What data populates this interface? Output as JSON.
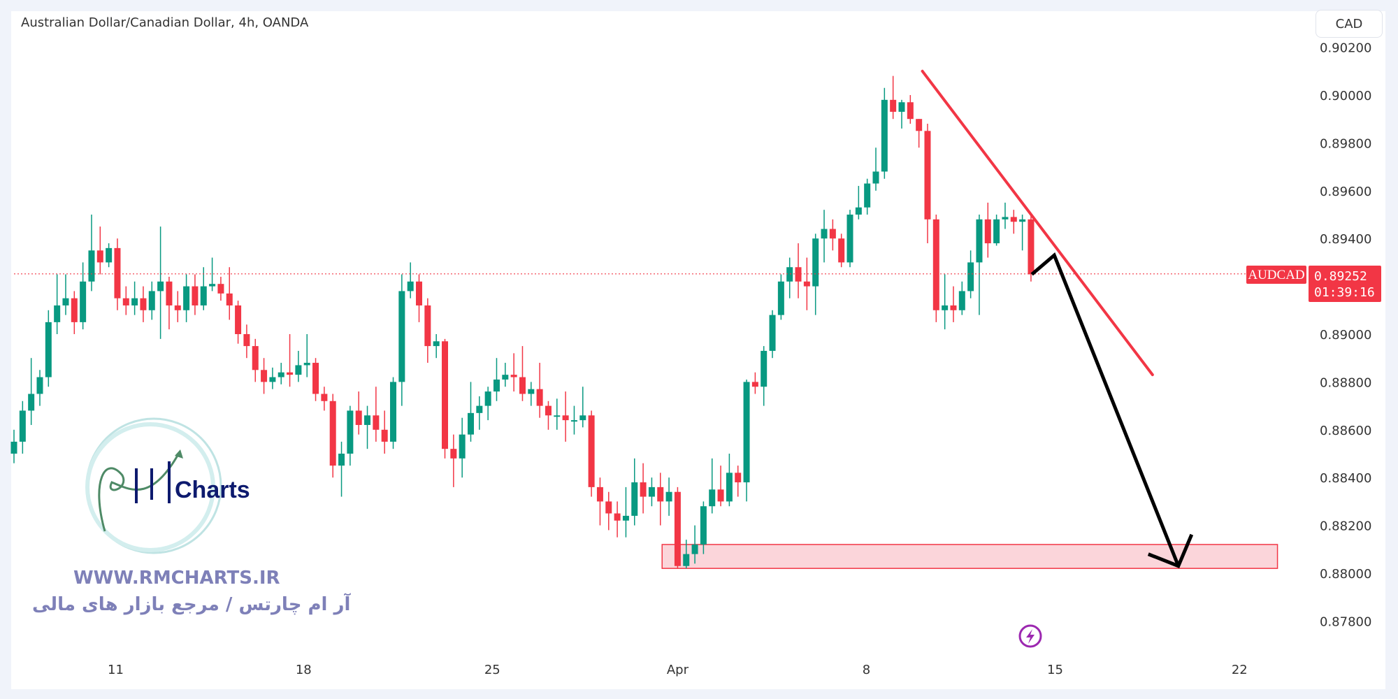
{
  "header": {
    "title": "Australian Dollar/Canadian Dollar, 4h, OANDA",
    "currency_button": "CAD"
  },
  "watermark": {
    "logo_text": "RM Charts",
    "url": "WWW.RMCHARTS.IR",
    "tagline_fa": "آر ام چارتس / مرجع بازار های مالی"
  },
  "price_label": {
    "symbol": "AUDCAD",
    "price": "0.89252",
    "countdown": "01:39:16",
    "color": "#f23645"
  },
  "colors": {
    "up": "#089981",
    "down": "#f23645",
    "zone_fill": "#fbd5da",
    "trendline": "#f23645",
    "arrow": "#000000",
    "event_icon": "#9c27b0"
  },
  "icons": {
    "event": "lightning-icon"
  },
  "chart_data": {
    "type": "candlestick",
    "symbol": "AUDCAD",
    "timeframe": "4h",
    "ylim": [
      0.877,
      0.9022
    ],
    "y_ticks": [
      "0.90200",
      "0.90000",
      "0.89800",
      "0.89600",
      "0.89400",
      "0.89000",
      "0.88800",
      "0.88600",
      "0.88400",
      "0.88200",
      "0.88000",
      "0.87800"
    ],
    "x_ticks": [
      {
        "label": "11",
        "index": 11.8
      },
      {
        "label": "18",
        "index": 33.6
      },
      {
        "label": "25",
        "index": 55.5
      },
      {
        "label": "Apr",
        "index": 77
      },
      {
        "label": "8",
        "index": 98.9
      },
      {
        "label": "15",
        "index": 120.8
      },
      {
        "label": "22",
        "index": 142.2
      }
    ],
    "current_price": 0.89252,
    "candles_ohlc": [
      [
        0.885,
        0.886,
        0.8846,
        0.8855
      ],
      [
        0.8855,
        0.8872,
        0.885,
        0.8868
      ],
      [
        0.8868,
        0.889,
        0.8862,
        0.8875
      ],
      [
        0.8875,
        0.8885,
        0.887,
        0.8882
      ],
      [
        0.8882,
        0.891,
        0.8878,
        0.8905
      ],
      [
        0.8905,
        0.8925,
        0.89,
        0.8912
      ],
      [
        0.8912,
        0.8925,
        0.8908,
        0.8915
      ],
      [
        0.8915,
        0.8918,
        0.89,
        0.8905
      ],
      [
        0.8905,
        0.893,
        0.8902,
        0.8922
      ],
      [
        0.8922,
        0.895,
        0.8918,
        0.8935
      ],
      [
        0.8935,
        0.8945,
        0.8925,
        0.893
      ],
      [
        0.893,
        0.8938,
        0.8928,
        0.8936
      ],
      [
        0.8936,
        0.894,
        0.891,
        0.8915
      ],
      [
        0.8915,
        0.892,
        0.8908,
        0.8912
      ],
      [
        0.8912,
        0.8922,
        0.8908,
        0.8915
      ],
      [
        0.8915,
        0.892,
        0.8905,
        0.891
      ],
      [
        0.891,
        0.8922,
        0.8906,
        0.8918
      ],
      [
        0.8918,
        0.8945,
        0.8898,
        0.8922
      ],
      [
        0.8922,
        0.8924,
        0.8902,
        0.8912
      ],
      [
        0.8912,
        0.8918,
        0.8905,
        0.891
      ],
      [
        0.891,
        0.8925,
        0.8905,
        0.892
      ],
      [
        0.892,
        0.8925,
        0.8908,
        0.8912
      ],
      [
        0.8912,
        0.8928,
        0.891,
        0.892
      ],
      [
        0.892,
        0.8932,
        0.8918,
        0.8921
      ],
      [
        0.8921,
        0.8924,
        0.8914,
        0.8917
      ],
      [
        0.8917,
        0.8928,
        0.8906,
        0.8912
      ],
      [
        0.8912,
        0.8914,
        0.8896,
        0.89
      ],
      [
        0.89,
        0.8904,
        0.889,
        0.8895
      ],
      [
        0.8895,
        0.8898,
        0.888,
        0.8885
      ],
      [
        0.8885,
        0.889,
        0.8875,
        0.888
      ],
      [
        0.888,
        0.8886,
        0.8877,
        0.8882
      ],
      [
        0.8882,
        0.8888,
        0.8879,
        0.8884
      ],
      [
        0.8884,
        0.89,
        0.8878,
        0.8883
      ],
      [
        0.8883,
        0.8893,
        0.888,
        0.8887
      ],
      [
        0.8887,
        0.89,
        0.8882,
        0.8888
      ],
      [
        0.8888,
        0.889,
        0.8872,
        0.8875
      ],
      [
        0.8875,
        0.8878,
        0.8868,
        0.8872
      ],
      [
        0.8872,
        0.8875,
        0.884,
        0.8845
      ],
      [
        0.8845,
        0.8855,
        0.8832,
        0.885
      ],
      [
        0.885,
        0.887,
        0.8845,
        0.8868
      ],
      [
        0.8868,
        0.8876,
        0.8858,
        0.8862
      ],
      [
        0.8862,
        0.887,
        0.8852,
        0.8866
      ],
      [
        0.8866,
        0.8878,
        0.8855,
        0.886
      ],
      [
        0.886,
        0.8868,
        0.885,
        0.8855
      ],
      [
        0.8855,
        0.8882,
        0.8852,
        0.888
      ],
      [
        0.888,
        0.8925,
        0.887,
        0.8918
      ],
      [
        0.8918,
        0.893,
        0.8915,
        0.8922
      ],
      [
        0.8922,
        0.8925,
        0.8905,
        0.8912
      ],
      [
        0.8912,
        0.8915,
        0.8888,
        0.8895
      ],
      [
        0.8895,
        0.89,
        0.889,
        0.8897
      ],
      [
        0.8897,
        0.8898,
        0.8848,
        0.8852
      ],
      [
        0.8852,
        0.8858,
        0.8836,
        0.8848
      ],
      [
        0.8848,
        0.8865,
        0.884,
        0.8858
      ],
      [
        0.8858,
        0.888,
        0.8855,
        0.8867
      ],
      [
        0.8867,
        0.8874,
        0.886,
        0.887
      ],
      [
        0.887,
        0.8878,
        0.8864,
        0.8876
      ],
      [
        0.8876,
        0.889,
        0.8872,
        0.8881
      ],
      [
        0.8881,
        0.8888,
        0.8878,
        0.8883
      ],
      [
        0.8883,
        0.8892,
        0.8876,
        0.8882
      ],
      [
        0.8882,
        0.8895,
        0.8872,
        0.8875
      ],
      [
        0.8875,
        0.888,
        0.887,
        0.8877
      ],
      [
        0.8877,
        0.8888,
        0.8865,
        0.887
      ],
      [
        0.887,
        0.8872,
        0.886,
        0.8866
      ],
      [
        0.8866,
        0.8873,
        0.886,
        0.8866
      ],
      [
        0.8866,
        0.8876,
        0.8855,
        0.8864
      ],
      [
        0.8864,
        0.887,
        0.8858,
        0.8864
      ],
      [
        0.8864,
        0.8878,
        0.8861,
        0.8866
      ],
      [
        0.8866,
        0.8868,
        0.8832,
        0.8836
      ],
      [
        0.8836,
        0.884,
        0.882,
        0.883
      ],
      [
        0.883,
        0.8834,
        0.8818,
        0.8825
      ],
      [
        0.8825,
        0.883,
        0.8815,
        0.8822
      ],
      [
        0.8822,
        0.8836,
        0.8815,
        0.8824
      ],
      [
        0.8824,
        0.8848,
        0.882,
        0.8838
      ],
      [
        0.8838,
        0.8846,
        0.8825,
        0.8832
      ],
      [
        0.8832,
        0.884,
        0.8828,
        0.8836
      ],
      [
        0.8836,
        0.8842,
        0.882,
        0.883
      ],
      [
        0.883,
        0.884,
        0.8824,
        0.8834
      ],
      [
        0.8834,
        0.8836,
        0.8802,
        0.8803
      ],
      [
        0.8803,
        0.8814,
        0.8802,
        0.8808
      ],
      [
        0.8808,
        0.882,
        0.8804,
        0.8812
      ],
      [
        0.8812,
        0.883,
        0.8808,
        0.8828
      ],
      [
        0.8828,
        0.8848,
        0.8825,
        0.8835
      ],
      [
        0.8835,
        0.8845,
        0.8828,
        0.883
      ],
      [
        0.883,
        0.885,
        0.8828,
        0.8842
      ],
      [
        0.8842,
        0.8845,
        0.8832,
        0.8838
      ],
      [
        0.8838,
        0.8881,
        0.883,
        0.888
      ],
      [
        0.888,
        0.8884,
        0.8875,
        0.8878
      ],
      [
        0.8878,
        0.8895,
        0.887,
        0.8893
      ],
      [
        0.8893,
        0.891,
        0.889,
        0.8908
      ],
      [
        0.8908,
        0.8925,
        0.8906,
        0.8922
      ],
      [
        0.8922,
        0.8932,
        0.8915,
        0.8928
      ],
      [
        0.8928,
        0.8938,
        0.8915,
        0.8922
      ],
      [
        0.8922,
        0.8932,
        0.891,
        0.892
      ],
      [
        0.892,
        0.8942,
        0.8908,
        0.894
      ],
      [
        0.894,
        0.8952,
        0.893,
        0.8944
      ],
      [
        0.8944,
        0.8948,
        0.8935,
        0.894
      ],
      [
        0.894,
        0.8942,
        0.8928,
        0.893
      ],
      [
        0.893,
        0.8952,
        0.8928,
        0.895
      ],
      [
        0.895,
        0.8962,
        0.8948,
        0.8953
      ],
      [
        0.8953,
        0.8965,
        0.895,
        0.8963
      ],
      [
        0.8963,
        0.8978,
        0.896,
        0.8968
      ],
      [
        0.8968,
        0.9003,
        0.8965,
        0.8998
      ],
      [
        0.8998,
        0.9008,
        0.899,
        0.8993
      ],
      [
        0.8993,
        0.8998,
        0.8986,
        0.8997
      ],
      [
        0.8997,
        0.9,
        0.8988,
        0.899
      ],
      [
        0.899,
        0.899,
        0.8978,
        0.8985
      ],
      [
        0.8985,
        0.8988,
        0.8938,
        0.8948
      ],
      [
        0.8948,
        0.895,
        0.8905,
        0.891
      ],
      [
        0.891,
        0.8925,
        0.8902,
        0.8912
      ],
      [
        0.8912,
        0.892,
        0.8905,
        0.891
      ],
      [
        0.891,
        0.8922,
        0.8908,
        0.8918
      ],
      [
        0.8918,
        0.8935,
        0.8915,
        0.893
      ],
      [
        0.893,
        0.895,
        0.8908,
        0.8948
      ],
      [
        0.8948,
        0.8955,
        0.8932,
        0.8938
      ],
      [
        0.8938,
        0.895,
        0.8937,
        0.8948
      ],
      [
        0.8948,
        0.8955,
        0.8944,
        0.8949
      ],
      [
        0.8949,
        0.8952,
        0.8942,
        0.8947
      ],
      [
        0.8947,
        0.895,
        0.8935,
        0.8948
      ],
      [
        0.8948,
        0.895,
        0.8922,
        0.8925
      ]
    ],
    "annotations": {
      "support_zone": {
        "price_top": 0.8812,
        "price_bottom": 0.8802,
        "index_start": 75.2,
        "index_end": 146.6
      },
      "trendline": {
        "points": [
          {
            "index": 105.4,
            "price": 0.901
          },
          {
            "index": 132.1,
            "price": 0.8883
          }
        ]
      },
      "forecast_arrow": {
        "points": [
          {
            "index": 118.1,
            "price": 0.8925
          },
          {
            "index": 120.7,
            "price": 0.8933
          },
          {
            "index": 135.1,
            "price": 0.8803
          }
        ]
      }
    }
  }
}
